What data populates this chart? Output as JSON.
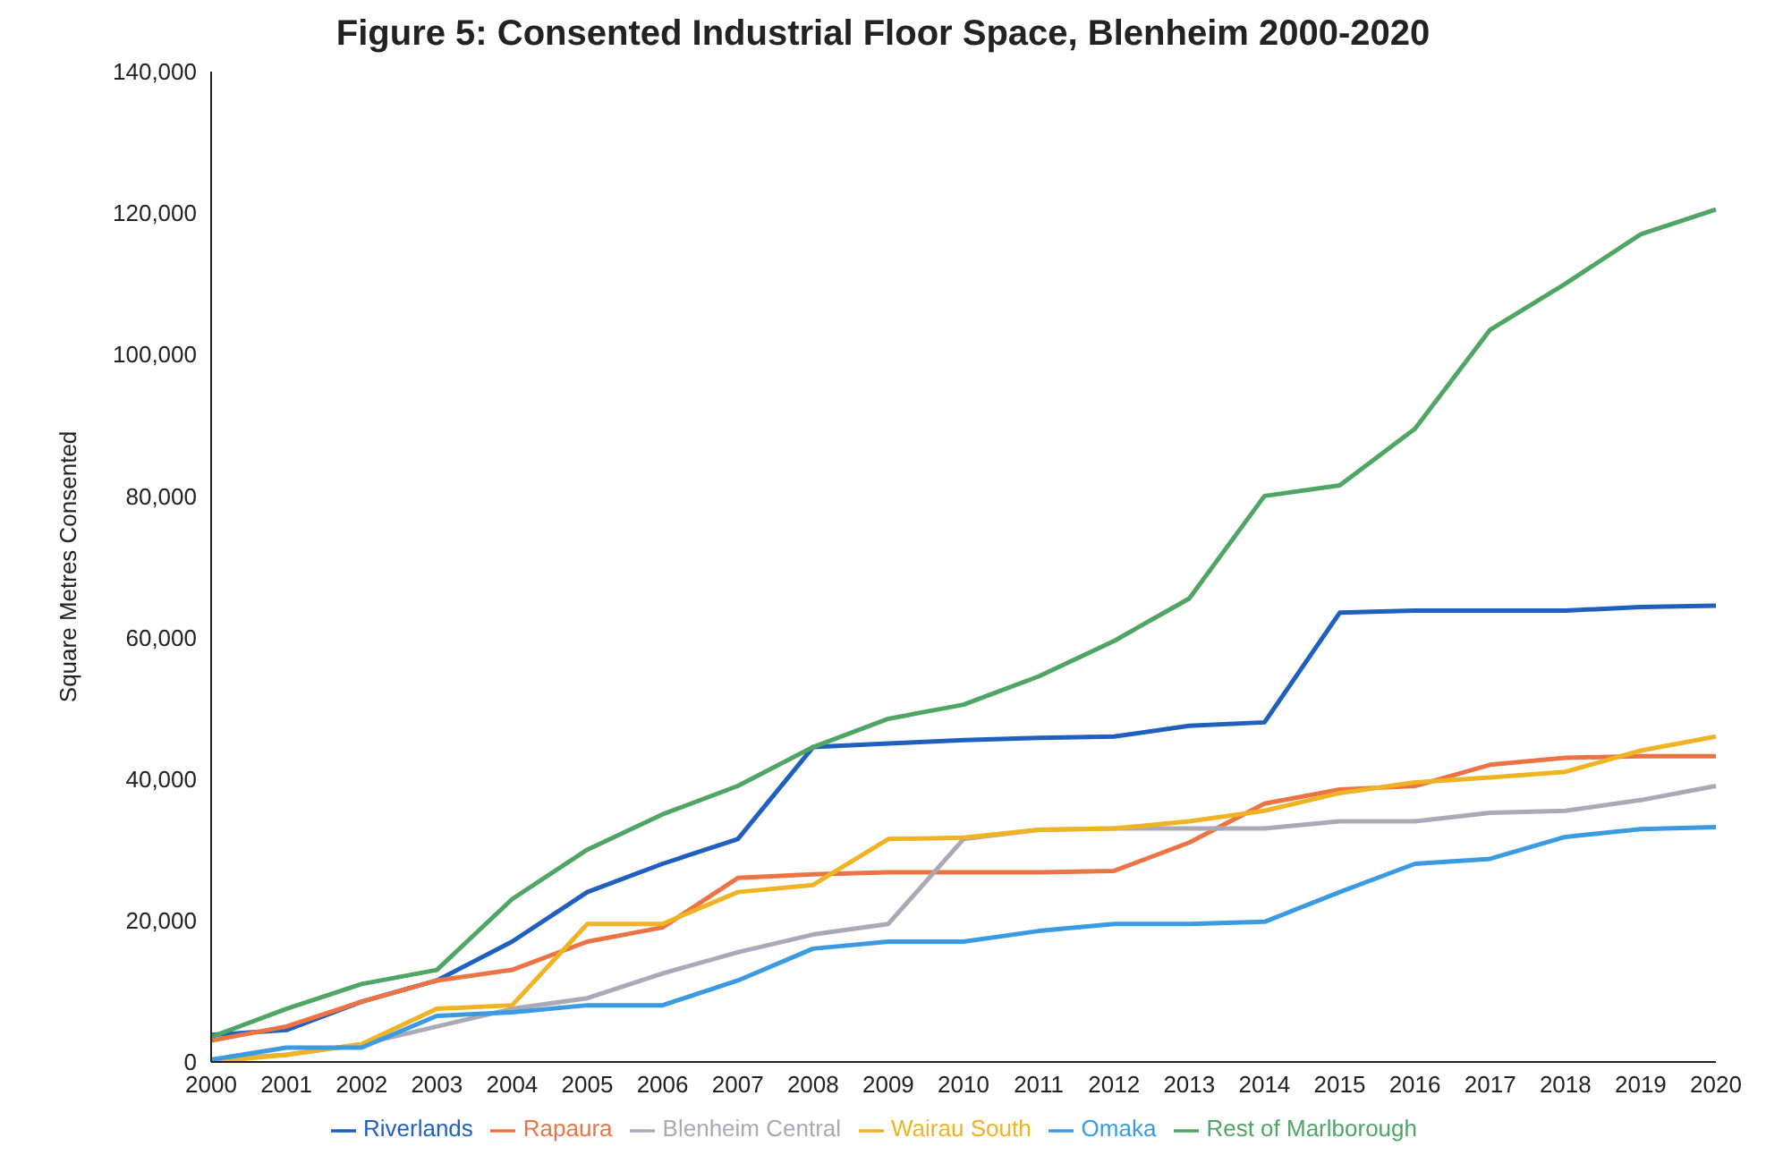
{
  "chart_data": {
    "type": "line",
    "title": "Figure 5:    Consented Industrial Floor Space, Blenheim 2000-2020",
    "ylabel": "Square Metres Consented",
    "categories": [
      "2000",
      "2001",
      "2002",
      "2003",
      "2004",
      "2005",
      "2006",
      "2007",
      "2008",
      "2009",
      "2010",
      "2011",
      "2012",
      "2013",
      "2014",
      "2015",
      "2016",
      "2017",
      "2018",
      "2019",
      "2020"
    ],
    "series": [
      {
        "name": "Riverlands",
        "color": "#1f5fbf",
        "values": [
          3800,
          4500,
          8500,
          11500,
          17000,
          24000,
          28000,
          31500,
          44500,
          45000,
          45500,
          45800,
          46000,
          47500,
          48000,
          63500,
          63800,
          63800,
          63800,
          64300,
          64500
        ]
      },
      {
        "name": "Rapaura",
        "color": "#ec7444",
        "values": [
          3000,
          5000,
          8500,
          11500,
          13000,
          17000,
          19000,
          26000,
          26500,
          26800,
          26800,
          26800,
          27000,
          31000,
          36500,
          38500,
          39000,
          42000,
          43000,
          43200,
          43200
        ]
      },
      {
        "name": "Blenheim Central",
        "color": "#a9a9b8",
        "values": [
          300,
          1000,
          2500,
          5000,
          7500,
          9000,
          12500,
          15500,
          18000,
          19500,
          31500,
          32800,
          33000,
          33000,
          33000,
          34000,
          34000,
          35200,
          35500,
          37000,
          39000
        ]
      },
      {
        "name": "Wairau South",
        "color": "#f0b323",
        "values": [
          0,
          1000,
          2500,
          7500,
          8000,
          19500,
          19500,
          24000,
          25000,
          31500,
          31700,
          32800,
          33000,
          34000,
          35500,
          38000,
          39500,
          40200,
          41000,
          44000,
          46000
        ]
      },
      {
        "name": "Omaka",
        "color": "#3a9ae2",
        "values": [
          300,
          2000,
          2000,
          6500,
          7000,
          8000,
          8000,
          11500,
          16000,
          17000,
          17000,
          18500,
          19500,
          19500,
          19800,
          24000,
          28000,
          28700,
          31800,
          32900,
          33200
        ]
      },
      {
        "name": "Rest of Marlborough",
        "color": "#4ea564",
        "values": [
          3500,
          7500,
          11000,
          13000,
          23000,
          30000,
          35000,
          39000,
          44500,
          48500,
          50500,
          54500,
          59500,
          65500,
          80000,
          81500,
          89500,
          103500,
          110000,
          117000,
          120500
        ]
      }
    ],
    "ylim": [
      0,
      140000
    ],
    "yticks": [
      {
        "value": 0,
        "label": "0"
      },
      {
        "value": 20000,
        "label": "20,000"
      },
      {
        "value": 40000,
        "label": "40,000"
      },
      {
        "value": 60000,
        "label": "60,000"
      },
      {
        "value": 80000,
        "label": "80,000"
      },
      {
        "value": 100000,
        "label": "100,000"
      },
      {
        "value": 120000,
        "label": "120,000"
      },
      {
        "value": 140000,
        "label": "140,000"
      }
    ],
    "grid": false,
    "legend": "bottom",
    "marker": "none",
    "line_style": "solid"
  }
}
